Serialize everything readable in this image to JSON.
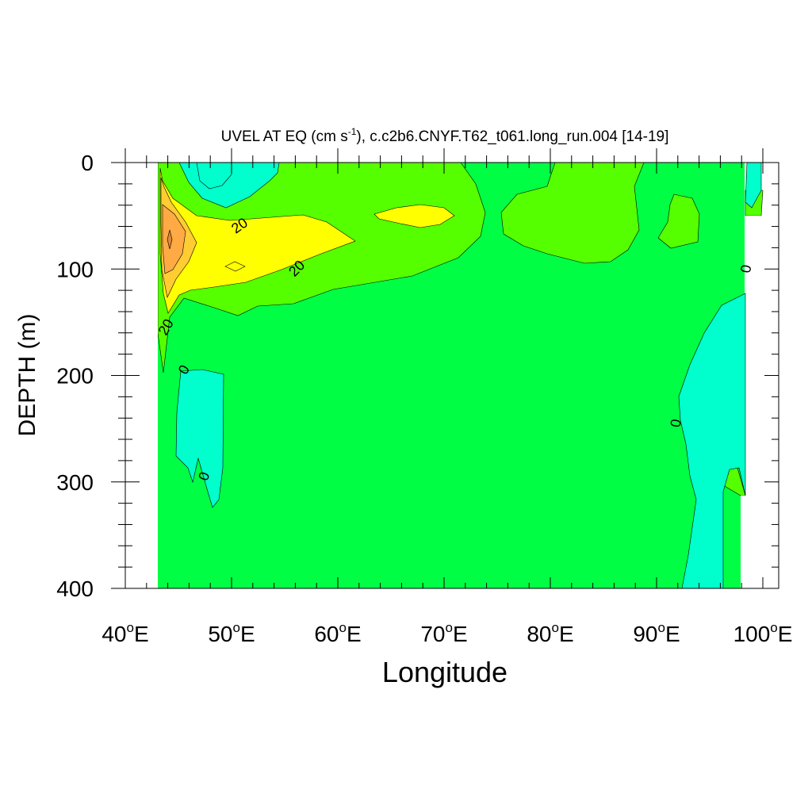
{
  "chart_data": {
    "type": "contour",
    "title": "UVEL AT EQ (cm s",
    "title_exponent": "-1",
    "title_suffix": "), c.c2b6.CNYF.T62_t061.long_run.004 [14-19]",
    "xlabel": "Longitude",
    "ylabel": "DEPTH (m)",
    "xlim": [
      40,
      100
    ],
    "ylim": [
      0,
      400
    ],
    "y_inverted": true,
    "x_ticks": [
      {
        "value": 40,
        "num": "40",
        "deg": "o",
        "dir": "E"
      },
      {
        "value": 50,
        "num": "50",
        "deg": "o",
        "dir": "E"
      },
      {
        "value": 60,
        "num": "60",
        "deg": "o",
        "dir": "E"
      },
      {
        "value": 70,
        "num": "70",
        "deg": "o",
        "dir": "E"
      },
      {
        "value": 80,
        "num": "80",
        "deg": "o",
        "dir": "E"
      },
      {
        "value": 90,
        "num": "90",
        "deg": "o",
        "dir": "E"
      },
      {
        "value": 100,
        "num": "100",
        "deg": "o",
        "dir": "E"
      }
    ],
    "y_ticks": [
      0,
      100,
      200,
      300,
      400
    ],
    "fill_colors": {
      "below_0": "#00ffcc",
      "0_to_10": "#00ff44",
      "10_to_20": "#55ff00",
      "20_to_30": "#ffff00",
      "30_to_40": "#ffcc33",
      "40_to_50": "#ffaa44",
      "land": "#ffffff"
    },
    "contour_labels": [
      {
        "text": "20",
        "lon": 50.8,
        "depth": 60,
        "angle": -35
      },
      {
        "text": "20",
        "lon": 56.2,
        "depth": 100,
        "angle": -45
      },
      {
        "text": "20",
        "lon": 43.9,
        "depth": 155,
        "angle": -60
      },
      {
        "text": "0",
        "lon": 45.6,
        "depth": 195,
        "angle": -60
      },
      {
        "text": "0",
        "lon": 47.5,
        "depth": 295,
        "angle": -70
      },
      {
        "text": "0",
        "lon": 91.9,
        "depth": 245,
        "angle": -80
      },
      {
        "text": "0",
        "lon": 98.5,
        "depth": 100,
        "angle": -80
      }
    ]
  }
}
